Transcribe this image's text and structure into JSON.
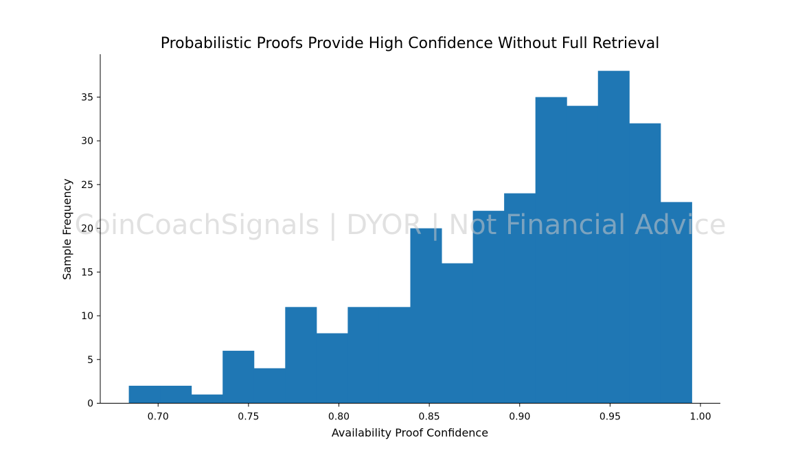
{
  "chart_data": {
    "type": "bar",
    "title": "Probabilistic Proofs Provide High Confidence Without Full Retrieval",
    "xlabel": "Availability Proof Confidence",
    "ylabel": "Sample Frequency",
    "xlim": [
      0.668,
      1.011
    ],
    "ylim": [
      0,
      39.9
    ],
    "xticks": [
      0.7,
      0.75,
      0.8,
      0.85,
      0.9,
      0.95,
      1.0
    ],
    "xtick_labels": [
      "0.70",
      "0.75",
      "0.80",
      "0.85",
      "0.90",
      "0.95",
      "1.00"
    ],
    "yticks": [
      0,
      5,
      10,
      15,
      20,
      25,
      30,
      35
    ],
    "ytick_labels": [
      "0",
      "5",
      "10",
      "15",
      "20",
      "25",
      "30",
      "35"
    ],
    "bin_edges": [
      0.6838,
      0.7011,
      0.7184,
      0.7357,
      0.753,
      0.7703,
      0.7876,
      0.8049,
      0.8222,
      0.8395,
      0.8568,
      0.8741,
      0.8914,
      0.9087,
      0.926,
      0.9433,
      0.9606,
      0.9779,
      0.9952
    ],
    "values": [
      2,
      2,
      1,
      6,
      4,
      11,
      8,
      11,
      11,
      20,
      16,
      22,
      24,
      35,
      34,
      38,
      32,
      23
    ],
    "bar_color": "#1f77b4",
    "grid": false,
    "spines": "left-bottom"
  },
  "watermark": "CoinCoachSignals | DYOR | Not Financial Advice"
}
